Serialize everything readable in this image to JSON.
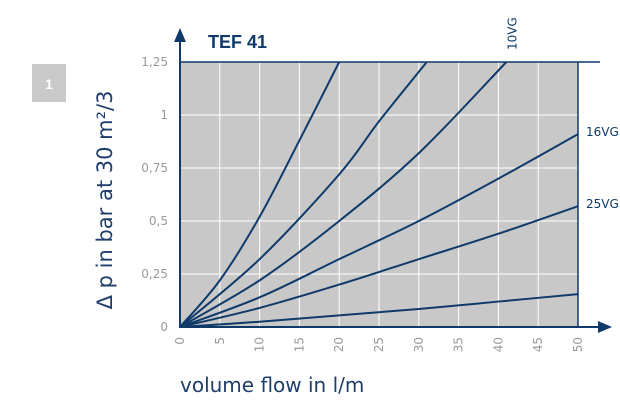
{
  "figure_number": "1",
  "chart_data": {
    "type": "line",
    "title": "TEF 41",
    "xlabel": "volume flow in l/m",
    "ylabel": "Δ p in bar at 30 m²/3",
    "xlim": [
      0,
      50
    ],
    "ylim": [
      0,
      1.25
    ],
    "x_ticks": [
      "0",
      "5",
      "10",
      "15",
      "20",
      "25",
      "30",
      "35",
      "40",
      "45",
      "50"
    ],
    "y_ticks": [
      "0",
      "0,25",
      "0,5",
      "0,75",
      "1",
      "1,25"
    ],
    "grid": true,
    "colors": {
      "plot_bg": "#c8c8c8",
      "grid": "#ffffff",
      "line": "#0f3a6a",
      "axis": "#0f3a6a",
      "badge": "#c9c9c9"
    },
    "series": [
      {
        "name": "",
        "x": [
          0,
          5,
          10,
          15,
          20
        ],
        "y": [
          0,
          0.22,
          0.52,
          0.88,
          1.25
        ]
      },
      {
        "name": "",
        "x": [
          0,
          10,
          20,
          25,
          31
        ],
        "y": [
          0,
          0.32,
          0.72,
          0.97,
          1.25
        ]
      },
      {
        "name": "10VG",
        "x": [
          0,
          10,
          20,
          30,
          41
        ],
        "y": [
          0,
          0.22,
          0.5,
          0.82,
          1.25
        ]
      },
      {
        "name": "16VG",
        "x": [
          0,
          10,
          20,
          30,
          40,
          50
        ],
        "y": [
          0,
          0.14,
          0.32,
          0.5,
          0.7,
          0.91
        ]
      },
      {
        "name": "25VG",
        "x": [
          0,
          10,
          20,
          30,
          40,
          50
        ],
        "y": [
          0,
          0.09,
          0.2,
          0.32,
          0.44,
          0.57
        ]
      },
      {
        "name": "",
        "x": [
          0,
          10,
          20,
          30,
          40,
          50
        ],
        "y": [
          0,
          0.025,
          0.055,
          0.085,
          0.12,
          0.155
        ]
      }
    ]
  }
}
